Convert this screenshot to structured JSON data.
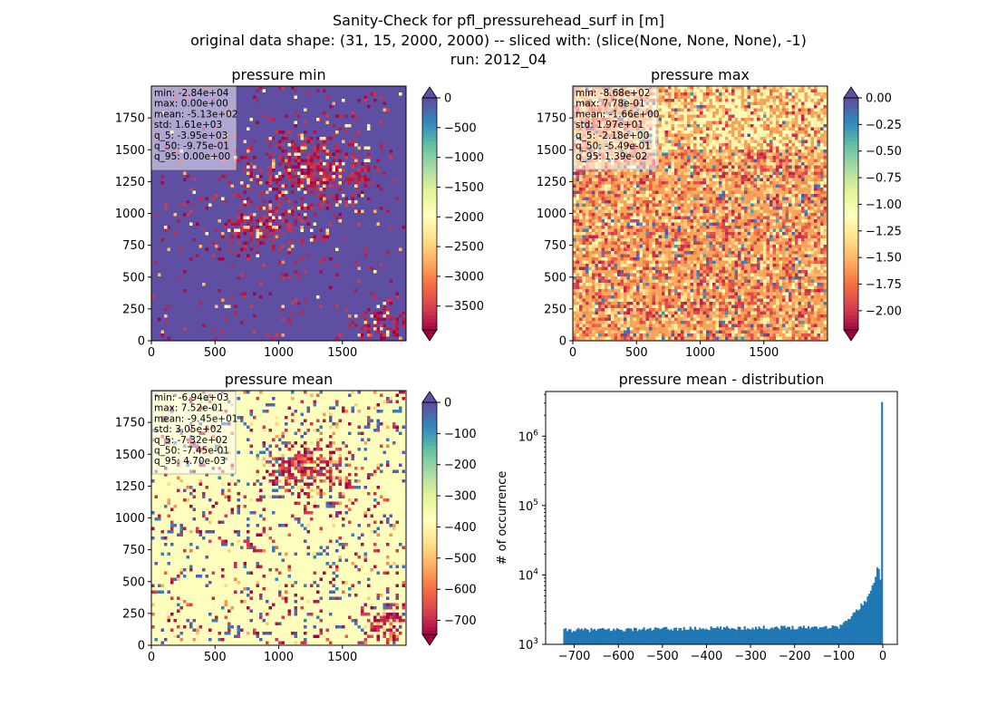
{
  "figure": {
    "suptitle_lines": [
      "Sanity-Check for pfl_pressurehead_surf in [m]",
      "original data shape: (31, 15, 2000, 2000) -- sliced with: (slice(None, None, None), -1)",
      "run: 2012_04"
    ]
  },
  "chart_data": [
    {
      "type": "heatmap",
      "title": "pressure min",
      "xlim": [
        0,
        2000
      ],
      "ylim": [
        0,
        2000
      ],
      "xticks": [
        0,
        500,
        1000,
        1500
      ],
      "yticks": [
        0,
        250,
        500,
        750,
        1000,
        1250,
        1500,
        1750
      ],
      "colormap": "Spectral",
      "colorbar": {
        "vmin": -3900,
        "vmax": 0,
        "ticks": [
          0,
          -500,
          -1000,
          -1500,
          -2000,
          -2500,
          -3000,
          -3500
        ],
        "extend_top": true,
        "extend_bottom": true
      },
      "background_color": "#5e4fa2",
      "stats": [
        "min: -2.84e+04",
        "max: 0.00e+00",
        "mean: -5.13e+02",
        "std: 1.61e+03",
        "q_5: -3.95e+03",
        "q_50: -9.75e-01",
        "q_95: 0.00e+00"
      ]
    },
    {
      "type": "heatmap",
      "title": "pressure max",
      "xlim": [
        0,
        2000
      ],
      "ylim": [
        0,
        2000
      ],
      "xticks": [
        0,
        500,
        1000,
        1500
      ],
      "yticks": [
        0,
        250,
        500,
        750,
        1000,
        1250,
        1500,
        1750
      ],
      "colormap": "Spectral",
      "colorbar": {
        "vmin": -2.18,
        "vmax": 0.0,
        "ticks": [
          0.0,
          -0.25,
          -0.5,
          -0.75,
          -1.0,
          -1.25,
          -1.5,
          -1.75,
          -2.0
        ],
        "tick_labels": [
          "0.00",
          "−0.25",
          "−0.50",
          "−0.75",
          "−1.00",
          "−1.25",
          "−1.50",
          "−1.75",
          "−2.00"
        ],
        "extend_top": true,
        "extend_bottom": true
      },
      "background_color": "#f4a55a",
      "stats": [
        "min: -8.68e+02",
        "max: 7.78e-01",
        "mean: -1.66e+00",
        "std: 1.97e+01",
        "q_5: -2.18e+00",
        "q_50: -5.49e-01",
        "q_95: 1.39e-02"
      ]
    },
    {
      "type": "heatmap",
      "title": "pressure mean",
      "xlim": [
        0,
        2000
      ],
      "ylim": [
        0,
        2000
      ],
      "xticks": [
        0,
        500,
        1000,
        1500
      ],
      "yticks": [
        0,
        250,
        500,
        750,
        1000,
        1250,
        1500,
        1750
      ],
      "colormap": "Spectral",
      "colorbar": {
        "vmin": -745,
        "vmax": 0,
        "ticks": [
          0,
          -100,
          -200,
          -300,
          -400,
          -500,
          -600,
          -700
        ],
        "extend_top": true,
        "extend_bottom": true
      },
      "background_color": "#fefebd",
      "stats": [
        "min: -6.94e+03",
        "max: 7.52e-01",
        "mean: -9.45e+01",
        "std: 3.05e+02",
        "q_5: -7.32e+02",
        "q_50: -7.45e-01",
        "q_95: 4.70e-03"
      ]
    },
    {
      "type": "bar",
      "subtype": "histogram",
      "title": "pressure mean - distribution",
      "xlabel": "",
      "ylabel": "# of occurrence",
      "xscale": "linear",
      "yscale": "log",
      "xlim": [
        -765,
        33
      ],
      "ylim": [
        1000,
        4400000
      ],
      "xticks": [
        -700,
        -600,
        -500,
        -400,
        -300,
        -200,
        -100,
        0
      ],
      "yticks": [
        1000,
        10000,
        100000,
        1000000
      ],
      "bar_color": "#1f77b4",
      "bins": {
        "x": [
          -725,
          -100,
          -90,
          -80,
          -70,
          -60,
          -50,
          -40,
          -30,
          -25,
          -20,
          -15,
          -10,
          -8,
          -6,
          -4,
          -2,
          -1,
          0
        ],
        "y": [
          1600,
          1800,
          2000,
          2200,
          2600,
          3000,
          3600,
          4200,
          5200,
          6200,
          8000,
          10500,
          16500,
          10000,
          9000,
          9500,
          12000,
          55000,
          3100000
        ]
      }
    }
  ]
}
